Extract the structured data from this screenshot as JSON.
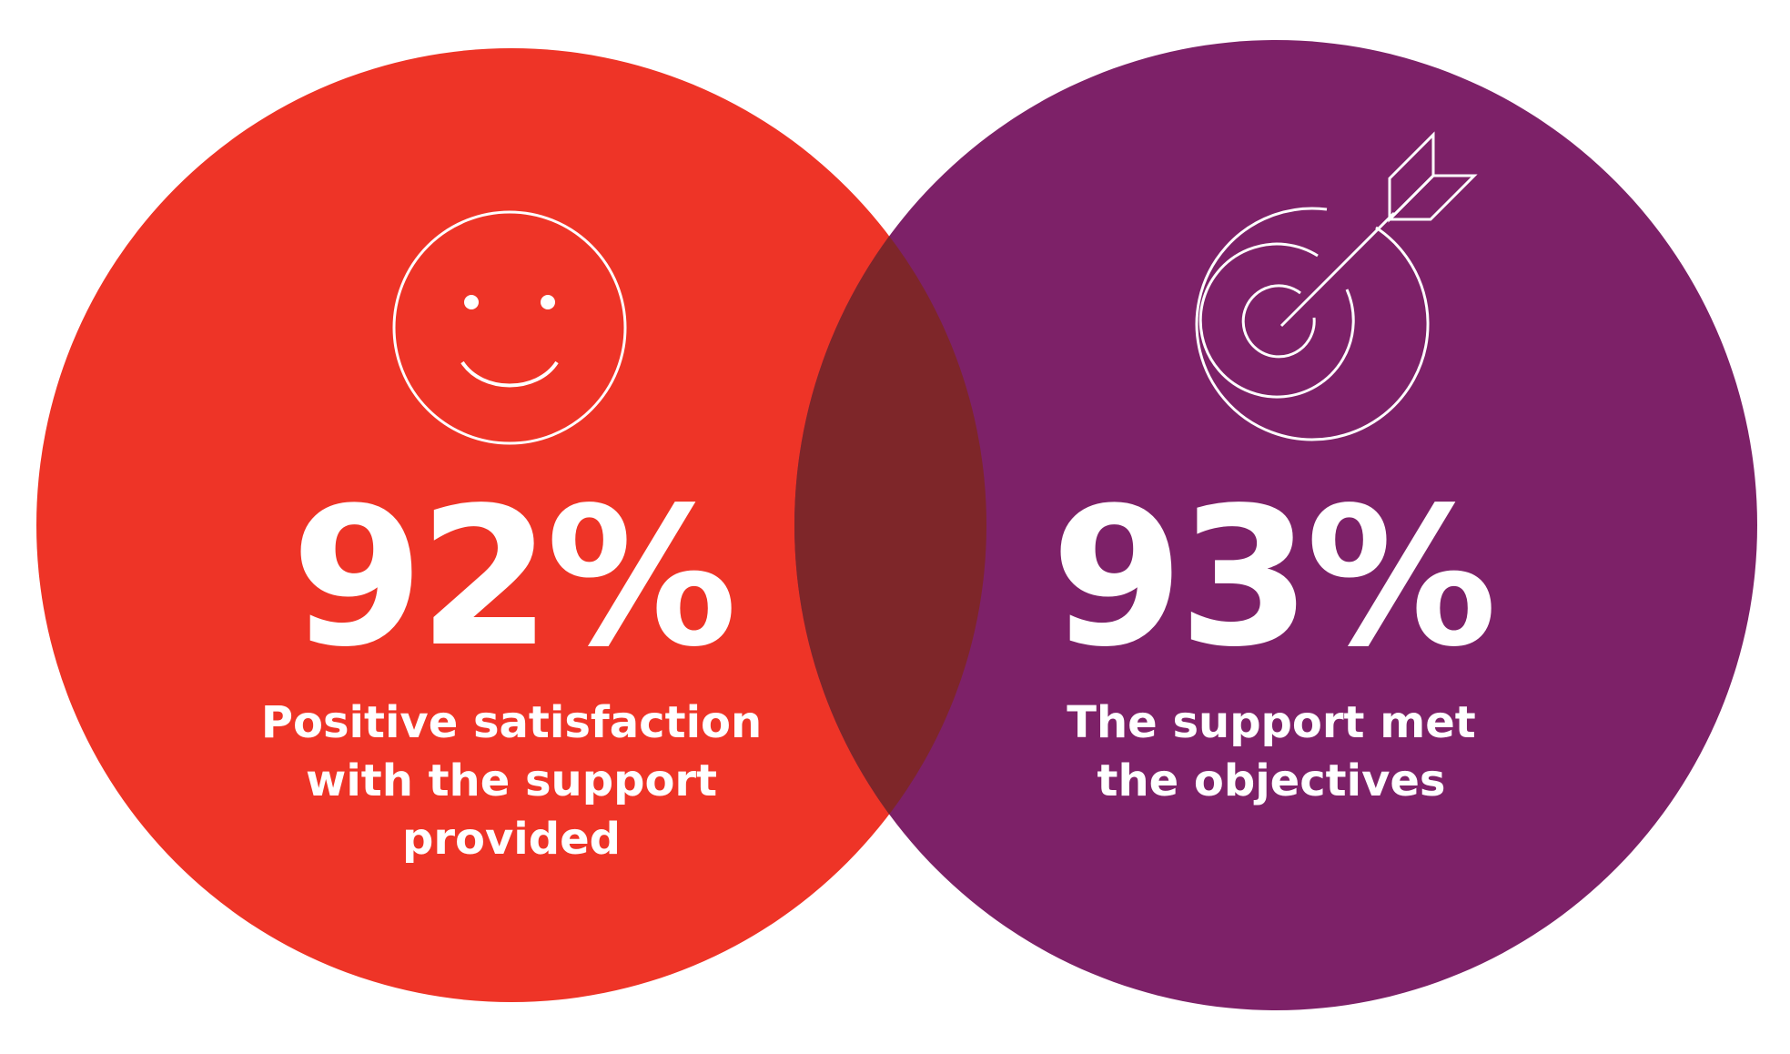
{
  "colors": {
    "left_circle": "#EE3427",
    "right_circle": "#7D2168",
    "overlap": "#7E2629",
    "icon_stroke": "#FFFFFF",
    "text": "#FFFFFF"
  },
  "stats": [
    {
      "value": "92%",
      "icon": "smiley-face-icon",
      "label_lines": [
        "Positive satisfaction",
        "with the support",
        "provided"
      ]
    },
    {
      "value": "93%",
      "icon": "target-arrow-icon",
      "label_lines": [
        "The support met",
        "the objectives"
      ]
    }
  ]
}
